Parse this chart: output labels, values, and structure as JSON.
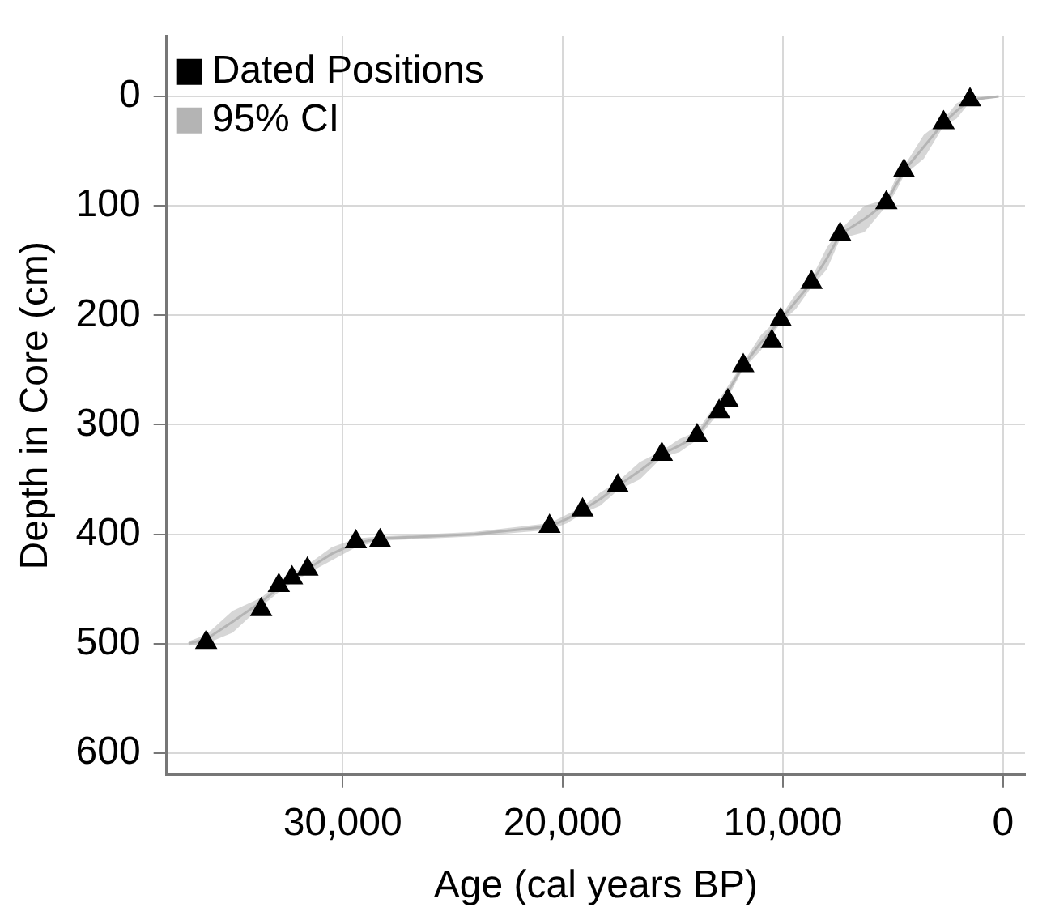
{
  "chart_data": {
    "type": "scatter",
    "xlabel": "Age (cal years BP)",
    "ylabel": "Depth in Core (cm)",
    "xlim": [
      38000,
      -1000
    ],
    "xticks": [
      {
        "value": 30000,
        "label": "30,000"
      },
      {
        "value": 20000,
        "label": "20,000"
      },
      {
        "value": 10000,
        "label": "10,000"
      },
      0
    ],
    "ylim": [
      620,
      -55
    ],
    "yticks": [
      0,
      100,
      200,
      300,
      400,
      500,
      600
    ],
    "grid": true,
    "legend": "top left",
    "marker": "triangle",
    "series": [
      {
        "name": "Dated Positions",
        "color": "#000000",
        "x": [
          1500,
          2700,
          4500,
          5300,
          7400,
          8700,
          10100,
          10500,
          11800,
          12500,
          12900,
          13900,
          15500,
          17500,
          19100,
          20600,
          28300,
          29400,
          31600,
          32300,
          32900,
          33700,
          36200
        ],
        "values": [
          3,
          24,
          68,
          97,
          126,
          170,
          204,
          224,
          246,
          278,
          288,
          310,
          327,
          356,
          378,
          393,
          406,
          407,
          432,
          440,
          447,
          469,
          499
        ]
      },
      {
        "name": "95% CI",
        "type": "line",
        "marker": "none",
        "color": "#b4b4b4",
        "x": [
          200,
          1500,
          2100,
          2700,
          3600,
          4500,
          4900,
          5300,
          6300,
          7400,
          8000,
          8700,
          9400,
          10100,
          11000,
          11800,
          12800,
          13900,
          14700,
          15500,
          16500,
          17500,
          18300,
          19100,
          19800,
          20600,
          24000,
          28300,
          29400,
          30500,
          31600,
          32600,
          33700,
          35000,
          36200,
          37000
        ],
        "values": [
          0,
          3,
          13,
          24,
          46,
          68,
          82,
          97,
          112,
          126,
          148,
          170,
          187,
          204,
          225,
          246,
          280,
          310,
          319,
          327,
          342,
          356,
          368,
          378,
          386,
          393,
          400,
          404,
          408,
          418,
          432,
          444,
          462,
          480,
          496,
          500
        ],
        "lower": [
          0,
          1,
          6,
          21,
          35,
          64,
          76,
          94,
          100,
          122,
          138,
          166,
          180,
          201,
          218,
          243,
          274,
          306,
          313,
          324,
          334,
          352,
          362,
          375,
          382,
          390,
          398,
          402,
          404,
          412,
          428,
          440,
          458,
          470,
          492,
          498
        ],
        "upper": [
          0,
          5,
          20,
          27,
          57,
          72,
          88,
          100,
          124,
          130,
          158,
          174,
          194,
          207,
          232,
          249,
          286,
          314,
          325,
          330,
          350,
          360,
          374,
          381,
          390,
          396,
          402,
          406,
          412,
          424,
          436,
          448,
          466,
          490,
          500,
          502
        ]
      }
    ]
  }
}
